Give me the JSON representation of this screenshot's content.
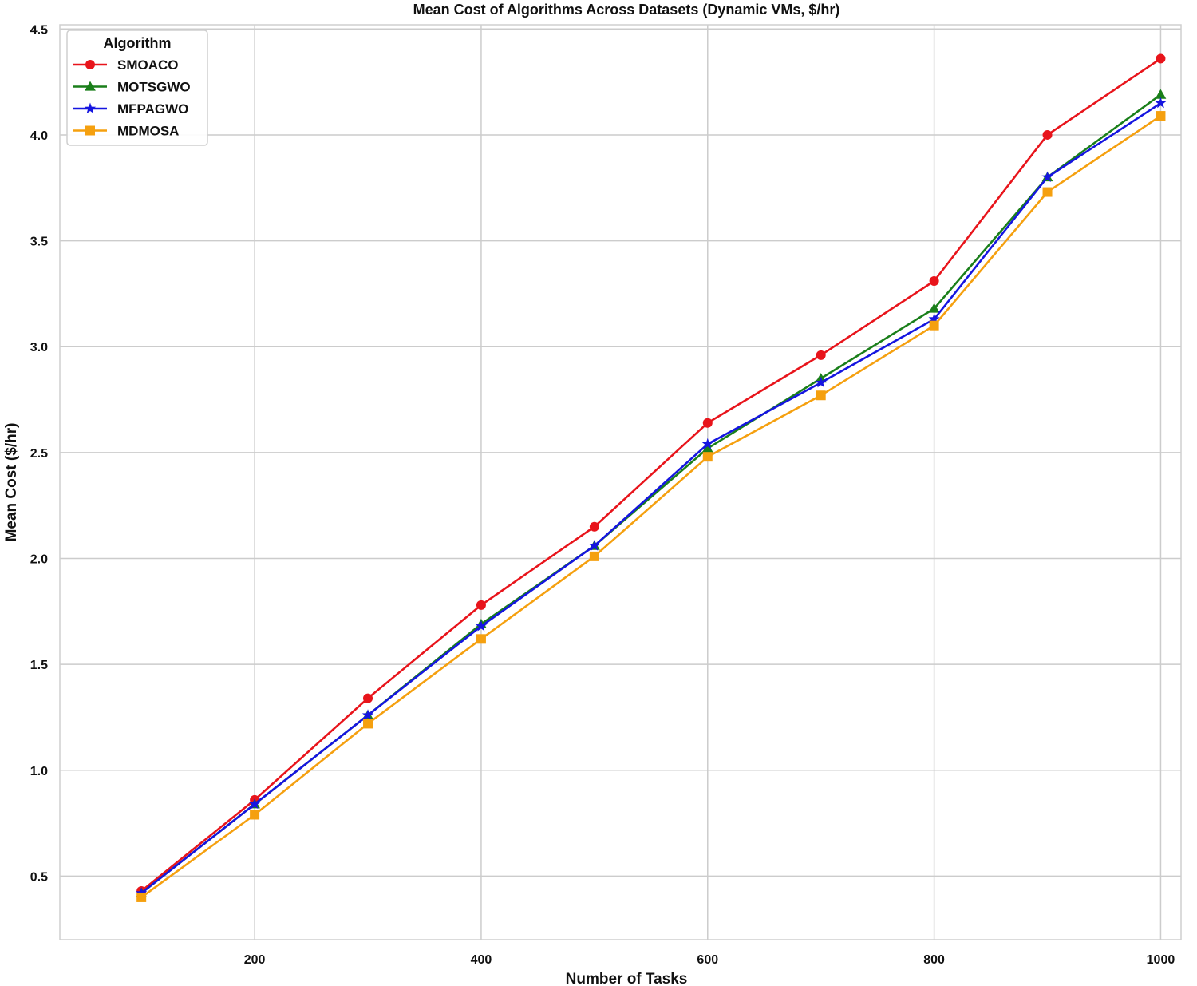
{
  "chart_data": {
    "type": "line",
    "title": "Mean Cost of Algorithms Across Datasets (Dynamic VMs, $/hr)",
    "xlabel": "Number of Tasks",
    "ylabel": "Mean Cost ($/hr)",
    "xlim": [
      28,
      1018
    ],
    "ylim": [
      0.2,
      4.52
    ],
    "xticks": [
      200,
      400,
      600,
      800,
      1000
    ],
    "yticks": [
      0.5,
      1.0,
      1.5,
      2.0,
      2.5,
      3.0,
      3.5,
      4.0,
      4.5
    ],
    "grid": true,
    "legend": {
      "title": "Algorithm",
      "position": "upper-left"
    },
    "x": [
      100,
      200,
      300,
      400,
      500,
      600,
      700,
      800,
      900,
      1000
    ],
    "series": [
      {
        "name": "SMOACO",
        "color": "#e8141b",
        "marker": "circle",
        "values": [
          0.43,
          0.86,
          1.34,
          1.78,
          2.15,
          2.64,
          2.96,
          3.31,
          4.0,
          4.36
        ]
      },
      {
        "name": "MOTSGWO",
        "color": "#1a7f1a",
        "marker": "triangle",
        "values": [
          0.42,
          0.84,
          1.26,
          1.69,
          2.06,
          2.52,
          2.85,
          3.18,
          3.8,
          4.19
        ]
      },
      {
        "name": "MFPAGWO",
        "color": "#1515e0",
        "marker": "star",
        "values": [
          0.42,
          0.84,
          1.26,
          1.68,
          2.06,
          2.54,
          2.83,
          3.13,
          3.8,
          4.15
        ]
      },
      {
        "name": "MDMOSA",
        "color": "#f5a00f",
        "marker": "square",
        "values": [
          0.4,
          0.79,
          1.22,
          1.62,
          2.01,
          2.48,
          2.77,
          3.1,
          3.73,
          4.09
        ]
      }
    ]
  }
}
